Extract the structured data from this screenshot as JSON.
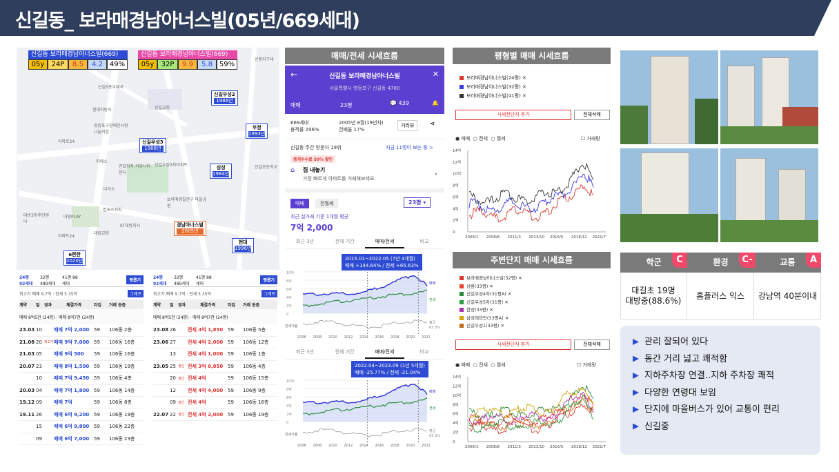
{
  "page_title": "신길동_ 보라매경남아너스빌(05년/669세대)",
  "map": {
    "compare_left": {
      "title": "신길동 보라매경남아너스빌(669)",
      "cells": [
        "05y",
        "24P",
        "8.5",
        "4.2",
        "49%"
      ]
    },
    "compare_right": {
      "title": "신길동 보라매경남아너스빌(669)",
      "cells": [
        "05y",
        "32P",
        "9.9",
        "5.8",
        "59%"
      ]
    },
    "pins": [
      {
        "name": "신길우성2",
        "year": "1986년"
      },
      {
        "name": "우정",
        "year": "1993년"
      },
      {
        "name": "신길우성3",
        "year": "1988년"
      },
      {
        "name": "성성",
        "year": "1984년"
      },
      {
        "name": "경남아너스빌",
        "year": "2005년"
      },
      {
        "name": "현대",
        "year": "1996년"
      },
      {
        "name": "e편한",
        "year": "2020년"
      }
    ],
    "labels": [
      "신길5동우체국",
      "현대자동차",
      "영등포구장애인사랑나눔의집",
      "신길교회",
      "이마트24",
      "카페스",
      "연표자자 커뮤니티센터",
      "신길우성3차아파트",
      "다이소",
      "보라매경찰관구 마을공원",
      "컴포즈커피",
      "KT대방지사",
      "대림교회",
      "대방3동주민센터",
      "대림PLAY",
      "이마트24",
      "신길초등학교",
      "신풍지구대"
    ]
  },
  "trades_left": {
    "tabs": [
      "24평 92세대",
      "32평 489세대",
      "41평 88세대"
    ],
    "button": "평룹기",
    "summary": "최고가 매매 9.7억 · 전세 5.35억",
    "chart_btn": "그래프",
    "header": [
      "계약",
      "일",
      "경과",
      "체결가격",
      "타입",
      "거래 등층"
    ],
    "banner": "매매 8억5천 (24평)  ·  매매 8억7천 (24평)",
    "rows": [
      {
        "d": "23.03",
        "day": "10",
        "p": "매매 7억 2,000",
        "t": "59",
        "f": "106동 2층",
        "tag": ""
      },
      {
        "d": "21.08",
        "day": "20",
        "p": "매매 9억 7,000",
        "t": "59",
        "f": "106동 16층",
        "tag": "최고가"
      },
      {
        "d": "21.03",
        "day": "05",
        "p": "매매 9억 500",
        "t": "59",
        "f": "106동 16층",
        "tag": ""
      },
      {
        "d": "20.07",
        "day": "23",
        "p": "매매 8억 1,500",
        "t": "59",
        "f": "106동 19층",
        "tag": ""
      },
      {
        "d": "",
        "day": "10",
        "p": "매매 7억 9,450",
        "t": "59",
        "f": "106동 4층",
        "tag": ""
      },
      {
        "d": "20.03",
        "day": "04",
        "p": "매매 7억 1,800",
        "t": "59",
        "f": "106동 14층",
        "tag": ""
      },
      {
        "d": "19.12",
        "day": "09",
        "p": "매매 7억",
        "t": "59",
        "f": "106동 8층",
        "tag": ""
      },
      {
        "d": "19.11",
        "day": "26",
        "p": "매매 6억 9,200",
        "t": "59",
        "f": "106동 19층",
        "tag": ""
      },
      {
        "d": "",
        "day": "15",
        "p": "매매 6억 9,800",
        "t": "59",
        "f": "106동 22층",
        "tag": ""
      },
      {
        "d": "",
        "day": "09",
        "p": "매매 6억 7,000",
        "t": "59",
        "f": "106동 23층",
        "tag": ""
      }
    ]
  },
  "trades_right": {
    "tabs": [
      "24평 92세대",
      "32평 489세대",
      "41평 88세대"
    ],
    "button": "평룹기",
    "summary": "최고가 매매 9.7억 · 전세 5.35억",
    "chart_btn": "그래프",
    "header": [
      "계약",
      "일",
      "경과",
      "체결가격",
      "타입",
      "거래 등층"
    ],
    "banner": "매매 8억5천 (24평)  ·  매매 8억7천 (24평)",
    "rows": [
      {
        "d": "23.08",
        "day": "26",
        "p": "전세 4억 1,850",
        "t": "59",
        "f": "106동 5층",
        "tag": ""
      },
      {
        "d": "23.06",
        "day": "27",
        "p": "전세 4억 2,000",
        "t": "59",
        "f": "106동 12층",
        "tag": ""
      },
      {
        "d": "",
        "day": "13",
        "p": "전세 4억 1,000",
        "t": "59",
        "f": "106동 1층",
        "tag": ""
      },
      {
        "d": "23.05",
        "day": "25",
        "p": "전세 3억 8,850",
        "t": "59",
        "f": "106동 4층",
        "tag": "갱신"
      },
      {
        "d": "",
        "day": "20",
        "p": "전세 4억",
        "t": "59",
        "f": "106동 15층",
        "tag": "갱신"
      },
      {
        "d": "",
        "day": "12",
        "p": "전세 4억 4,000",
        "t": "59",
        "f": "106동 9층",
        "tag": ""
      },
      {
        "d": "",
        "day": "09",
        "p": "전세 4억",
        "t": "59",
        "f": "106동 16층",
        "tag": "갱신"
      },
      {
        "d": "22.07",
        "day": "22",
        "p": "전세 4억 2,000",
        "t": "59",
        "f": "106동 19층",
        "tag": "갱신"
      }
    ]
  },
  "app": {
    "panel_title": "매매/전세 시세흐름",
    "header_title": "신길동 보라매경남아너스빌",
    "address": "서울특별시 영등포구 신길동 4780",
    "tab_trade": "매매",
    "tab_size": "23평",
    "comments": "439",
    "info1": "669세대",
    "info2": "용적률 296%",
    "info3": "2005년 8월(19년차)",
    "info4": "건폐율 17%",
    "street_btn": "거리뷰",
    "visitors": "신길동 주간 방문자 19위",
    "visitors_link": "지금 11명이 보는 중 >",
    "promo": "중개수수료 50% 할인",
    "sell_title": "집 내놓기",
    "sell_sub": "가장 빠르게 아파트를 거래해보세요.",
    "toggle1": "매매",
    "toggle2": "전월세",
    "size_sel": "23평",
    "avg_label": "최근 실거래 기준 1개월 평균",
    "avg_price": "7억 2,000",
    "period_tabs": [
      "최근 3년",
      "전체 기간",
      "매매/전세",
      "비교"
    ],
    "box1_line1": "2015.01~2022.05 (7년 4개월)",
    "box1_line2": "매매 +144.64% / 전세 +65.63%",
    "box2_line1": "2022.04~2023.09 (1년 5개월)",
    "box2_line2": "매매 -25.77% / 전세 -21.04%",
    "ylabels": [
      "10억",
      "8억",
      "6억",
      "4억",
      "2억",
      "0"
    ],
    "xlabels": [
      "2006",
      "2008",
      "2010",
      "2012",
      "2014",
      "2016",
      "2018",
      "2020",
      "2022"
    ],
    "legend_trade": "매매",
    "legend_rent": "전세",
    "legend_ratio": "전세가율",
    "ratio_label": "평균",
    "ratio_value": "63.3%"
  },
  "size_chart": {
    "panel_title": "평형별 매매 시세흐름",
    "legend": [
      "보라매경남아너스빌(24평)",
      "보라매경남아너스빌(32평)",
      "보라매경남아너스빌(41평)"
    ],
    "add_btn": "시세전단지 추가",
    "del_btn": "전체삭제",
    "radio": [
      "매매",
      "전세",
      "월세"
    ],
    "check": "거래량",
    "ylabels": [
      "14억",
      "12억",
      "10억",
      "8억",
      "6억",
      "4억",
      "2억",
      "0"
    ],
    "xlabels": [
      "2006/1",
      "2008/8",
      "2011/3",
      "2013/10",
      "2016/5",
      "2018/12",
      "2021/7"
    ]
  },
  "near_chart": {
    "panel_title": "주변단지 매매 시세흐름",
    "legend": [
      "보라매경남아너스빌(32평)",
      "상환(33평)",
      "신길우성4차(31평A)",
      "신길우성5차(31평)",
      "한성(33평)",
      "삼성래미안(33평A)",
      "신길우성1(33평)"
    ],
    "legend_colors": [
      "#d93a2b",
      "#e8402f",
      "#2a8a3a",
      "#2d9e3f",
      "#b030b0",
      "#d4a100",
      "#c06a1a"
    ],
    "add_btn": "시세전단지 추가",
    "del_btn": "전체삭제",
    "radio": [
      "매매",
      "전세",
      "월세"
    ],
    "check": "거래량",
    "ylabels": [
      "14억",
      "12억",
      "10억",
      "8억",
      "6억",
      "4억",
      "2억",
      "0"
    ],
    "xlabels": [
      "2006/1",
      "2008/8",
      "2011/3",
      "2013/10",
      "2016/5",
      "2018/12",
      "2021/7"
    ]
  },
  "rating": {
    "heads": [
      "학군",
      "환경",
      "교통"
    ],
    "grades": [
      "C",
      "C-",
      "A"
    ],
    "values": [
      "대길초 19명\n대방중(88.6%)",
      "홈플러스 익스",
      "강남역 40분이내"
    ]
  },
  "points": [
    "관리 잘되어 있다",
    "동간 거리 넓고 쾌적함",
    "지하주차장 연결..지하 주차장 쾌적",
    "다양한 연령대 보임",
    "단지에 마을버스가 있어 교통이 편리",
    "신길중"
  ]
}
